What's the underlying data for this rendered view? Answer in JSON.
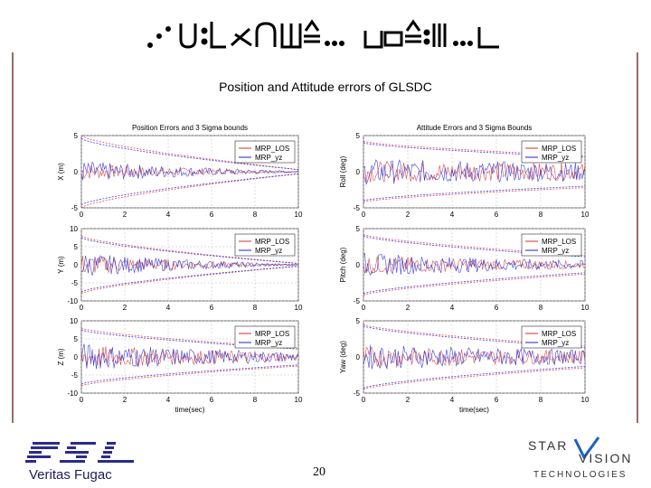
{
  "slide": {
    "subtitle": "Position and Attitude errors of GLSDC",
    "page_number": "20",
    "left_logo": {
      "text": "FSL",
      "caption": "Veritas Fugac"
    },
    "right_logo": {
      "line1": "STAR",
      "line2": "VISION",
      "line3": "TECHNOLOGIES"
    },
    "colors": {
      "frame": "#9c6a6a",
      "los": "#d03030",
      "yz": "#2222cc",
      "bounds_los": "#e05050",
      "bounds_yz": "#4040e0"
    }
  },
  "chart_data": [
    {
      "type": "line",
      "id": "x",
      "title": "Position Errors and 3 Sigma bounds",
      "ylabel": "X (m)",
      "xlabel": "",
      "xlim": [
        0,
        10
      ],
      "ylim": [
        -5,
        5
      ],
      "yticks": [
        "5",
        "0",
        "-5"
      ],
      "xticks": [
        "0",
        "2",
        "4",
        "6",
        "8",
        "10"
      ],
      "legend": "top-right",
      "series": [
        {
          "name": "MRP_LOS",
          "bound_start": 5,
          "bound_end": 0.3,
          "noise_amp": 1.2,
          "noise_end": 0.08
        },
        {
          "name": "MRP_yz",
          "bound_start": 4.6,
          "bound_end": 0.28,
          "noise_amp": 1.6,
          "noise_end": 0.1
        }
      ]
    },
    {
      "type": "line",
      "id": "roll",
      "title": "Attitude Errors and 3 Sigma Bounds",
      "ylabel": "Roll (deg)",
      "xlabel": "",
      "xlim": [
        0,
        10
      ],
      "ylim": [
        -5,
        5
      ],
      "yticks": [
        "5",
        "0",
        "-5"
      ],
      "xticks": [
        "0",
        "2",
        "4",
        "6",
        "8",
        "10"
      ],
      "legend": "top-right",
      "series": [
        {
          "name": "MRP_LOS",
          "bound_start": 4.2,
          "bound_end": 2.2,
          "noise_amp": 1.5,
          "noise_end": 1.2
        },
        {
          "name": "MRP_yz",
          "bound_start": 4.0,
          "bound_end": 2.0,
          "noise_amp": 1.8,
          "noise_end": 1.3
        }
      ]
    },
    {
      "type": "line",
      "id": "y",
      "title": "",
      "ylabel": "Y (m)",
      "xlabel": "",
      "xlim": [
        0,
        10
      ],
      "ylim": [
        -10,
        10
      ],
      "yticks": [
        "10",
        "5",
        "0",
        "-5",
        "-10"
      ],
      "xticks": [
        "0",
        "2",
        "4",
        "6",
        "8",
        "10"
      ],
      "legend": "top-right",
      "series": [
        {
          "name": "MRP_LOS",
          "bound_start": 8,
          "bound_end": 0.4,
          "noise_amp": 3,
          "noise_end": 0.1
        },
        {
          "name": "MRP_yz",
          "bound_start": 7.5,
          "bound_end": 0.35,
          "noise_amp": 3.5,
          "noise_end": 0.12
        }
      ]
    },
    {
      "type": "line",
      "id": "pitch",
      "title": "",
      "ylabel": "Pitch (deg)",
      "xlabel": "",
      "xlim": [
        0,
        10
      ],
      "ylim": [
        -5,
        5
      ],
      "yticks": [
        "5",
        "0",
        "-5"
      ],
      "xticks": [
        "0",
        "2",
        "4",
        "6",
        "8",
        "10"
      ],
      "legend": "top-right",
      "series": [
        {
          "name": "MRP_LOS",
          "bound_start": 4.2,
          "bound_end": 1.3,
          "noise_amp": 1.4,
          "noise_end": 0.5
        },
        {
          "name": "MRP_yz",
          "bound_start": 4.0,
          "bound_end": 1.1,
          "noise_amp": 1.7,
          "noise_end": 0.6
        }
      ]
    },
    {
      "type": "line",
      "id": "z",
      "title": "",
      "ylabel": "Z (m)",
      "xlabel": "time(sec)",
      "xlim": [
        0,
        10
      ],
      "ylim": [
        -10,
        10
      ],
      "yticks": [
        "10",
        "5",
        "0",
        "-5",
        "-10"
      ],
      "xticks": [
        "0",
        "2",
        "4",
        "6",
        "8",
        "10"
      ],
      "legend": "top-right",
      "series": [
        {
          "name": "MRP_LOS",
          "bound_start": 8,
          "bound_end": 2.5,
          "noise_amp": 3.5,
          "noise_end": 1.2
        },
        {
          "name": "MRP_yz",
          "bound_start": 7.5,
          "bound_end": 2.2,
          "noise_amp": 4,
          "noise_end": 1.3
        }
      ]
    },
    {
      "type": "line",
      "id": "yaw",
      "title": "",
      "ylabel": "Yaw (deg)",
      "xlabel": "time(sec)",
      "xlim": [
        0,
        10
      ],
      "ylim": [
        -5,
        5
      ],
      "yticks": [
        "5",
        "0",
        "-5"
      ],
      "xticks": [
        "0",
        "2",
        "4",
        "6",
        "8",
        "10"
      ],
      "legend": "top-right",
      "series": [
        {
          "name": "MRP_LOS",
          "bound_start": 4.5,
          "bound_end": 1.5,
          "noise_amp": 1.5,
          "noise_end": 0.9
        },
        {
          "name": "MRP_yz",
          "bound_start": 4.3,
          "bound_end": 1.3,
          "noise_amp": 1.8,
          "noise_end": 1.0
        }
      ]
    }
  ]
}
